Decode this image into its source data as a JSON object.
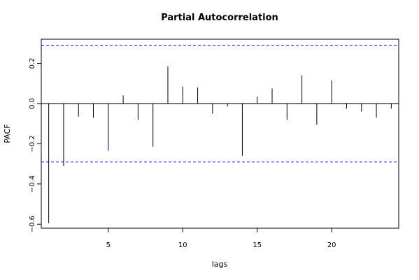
{
  "chart_data": {
    "type": "bar",
    "title": "Partial Autocorrelation",
    "xlabel": "lags",
    "ylabel": "PACF",
    "xlim": [
      0.5,
      24.5
    ],
    "ylim": [
      -0.62,
      0.32
    ],
    "x_ticks": [
      5,
      10,
      15,
      20
    ],
    "y_ticks": [
      -0.6,
      -0.4,
      -0.2,
      0.0,
      0.2
    ],
    "x_tick_labels": [
      "5",
      "10",
      "15",
      "20"
    ],
    "y_tick_labels": [
      "−0.6",
      "−0.4",
      "−0.2",
      "0.0",
      "0.2"
    ],
    "lags": [
      1,
      2,
      3,
      4,
      5,
      6,
      7,
      8,
      9,
      10,
      11,
      12,
      13,
      14,
      15,
      16,
      17,
      18,
      19,
      20,
      21,
      22,
      23,
      24
    ],
    "values": [
      -0.595,
      -0.31,
      -0.065,
      -0.07,
      -0.235,
      0.04,
      -0.08,
      -0.215,
      0.185,
      0.085,
      0.08,
      -0.05,
      -0.015,
      -0.26,
      0.035,
      0.075,
      -0.08,
      0.14,
      -0.105,
      0.115,
      -0.025,
      -0.04,
      -0.07,
      -0.025
    ],
    "confidence_bound": 0.29,
    "confidence_color": "#0000ff",
    "bar_color": "#000000",
    "zero_line_color": "#000000",
    "grid": false,
    "legend": "none"
  }
}
